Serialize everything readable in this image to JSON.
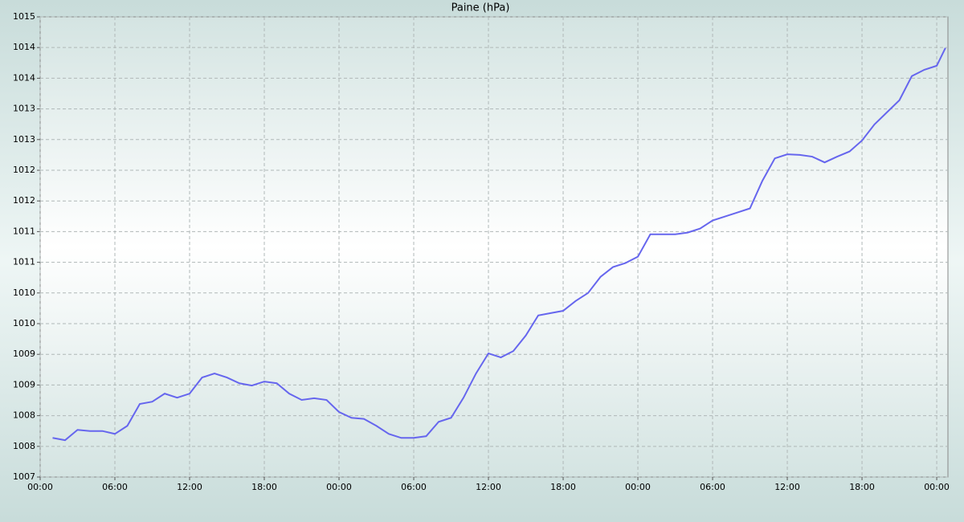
{
  "chart_data": {
    "type": "line",
    "title": "Paine (hPa)",
    "xlim": [
      0,
      72.9
    ],
    "ylim": [
      1007,
      1015
    ],
    "xticks": [
      {
        "value": 0,
        "label": "00:00"
      },
      {
        "value": 6,
        "label": "06:00"
      },
      {
        "value": 12,
        "label": "12:00"
      },
      {
        "value": 18,
        "label": "18:00"
      },
      {
        "value": 24,
        "label": "00:00"
      },
      {
        "value": 30,
        "label": "06:00"
      },
      {
        "value": 36,
        "label": "12:00"
      },
      {
        "value": 42,
        "label": "18:00"
      },
      {
        "value": 48,
        "label": "00:00"
      },
      {
        "value": 54,
        "label": "06:00"
      },
      {
        "value": 60,
        "label": "12:00"
      },
      {
        "value": 66,
        "label": "18:00"
      },
      {
        "value": 72,
        "label": "00:00"
      }
    ],
    "yticks": [
      1007,
      {
        "value": 1007.533,
        "label": "1008"
      },
      {
        "value": 1008.067,
        "label": "1008"
      },
      {
        "value": 1008.6,
        "label": "1009"
      },
      {
        "value": 1009.133,
        "label": "1009"
      },
      {
        "value": 1009.667,
        "label": "1010"
      },
      {
        "value": 1010.2,
        "label": "1010"
      },
      {
        "value": 1010.733,
        "label": "1011"
      },
      {
        "value": 1011.267,
        "label": "1011"
      },
      {
        "value": 1011.8,
        "label": "1012"
      },
      {
        "value": 1012.333,
        "label": "1012"
      },
      {
        "value": 1012.867,
        "label": "1013"
      },
      {
        "value": 1013.4,
        "label": "1013"
      },
      {
        "value": 1013.933,
        "label": "1014"
      },
      {
        "value": 1014.467,
        "label": "1014"
      },
      1015
    ],
    "grid": true,
    "x": [
      1,
      2,
      3,
      4,
      5,
      6,
      7,
      8,
      9,
      10,
      11,
      12,
      13,
      14,
      15,
      16,
      17,
      18,
      19,
      20,
      21,
      22,
      23,
      24,
      25,
      26,
      27,
      28,
      29,
      30,
      31,
      32,
      33,
      34,
      35,
      36,
      37,
      38,
      39,
      40,
      41,
      42,
      43,
      44,
      45,
      46,
      47,
      48,
      49,
      50,
      51,
      52,
      53,
      54,
      55,
      56,
      57,
      58,
      59,
      60,
      61,
      62,
      63,
      64,
      65,
      66,
      67,
      68,
      69,
      70,
      71,
      72,
      72.7
    ],
    "series": [
      {
        "color": "#6666ee",
        "values": [
          1007.68,
          1007.64,
          1007.82,
          1007.8,
          1007.8,
          1007.75,
          1007.89,
          1008.27,
          1008.31,
          1008.45,
          1008.38,
          1008.45,
          1008.73,
          1008.8,
          1008.73,
          1008.63,
          1008.59,
          1008.66,
          1008.63,
          1008.45,
          1008.34,
          1008.37,
          1008.34,
          1008.13,
          1008.03,
          1008.01,
          1007.89,
          1007.75,
          1007.68,
          1007.68,
          1007.71,
          1007.96,
          1008.03,
          1008.38,
          1008.8,
          1009.15,
          1009.08,
          1009.19,
          1009.46,
          1009.81,
          1009.85,
          1009.89,
          1010.06,
          1010.2,
          1010.48,
          1010.65,
          1010.72,
          1010.83,
          1011.22,
          1011.22,
          1011.22,
          1011.25,
          1011.32,
          1011.46,
          1011.53,
          1011.6,
          1011.67,
          1012.15,
          1012.54,
          1012.61,
          1012.6,
          1012.57,
          1012.47,
          1012.57,
          1012.66,
          1012.85,
          1013.13,
          1013.34,
          1013.55,
          1013.97,
          1014.08,
          1014.15,
          1014.46
        ]
      }
    ]
  }
}
